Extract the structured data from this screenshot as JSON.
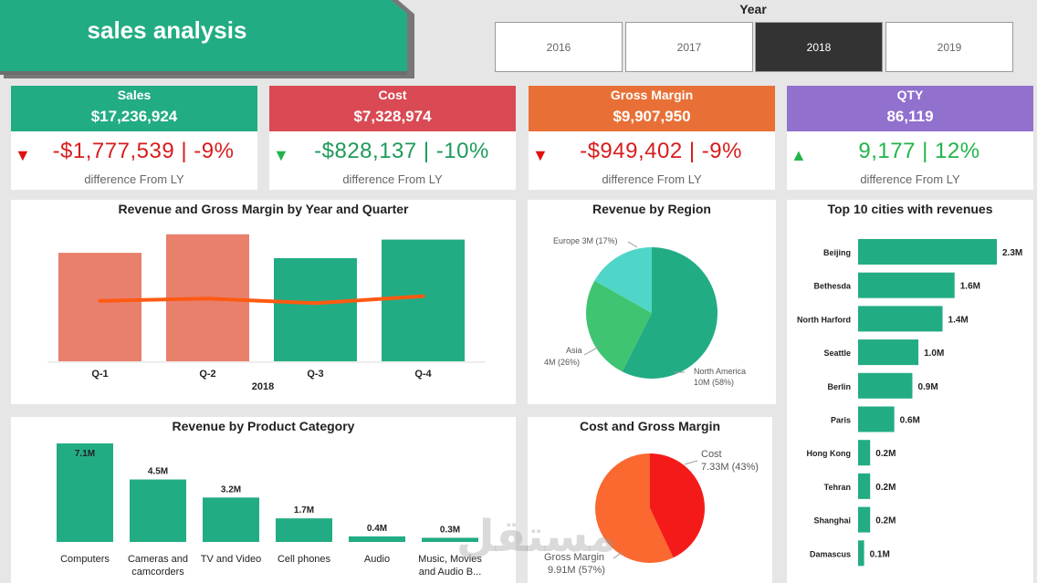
{
  "header": {
    "title": "sales analysis",
    "year_label": "Year"
  },
  "years": [
    {
      "label": "2016",
      "active": false
    },
    {
      "label": "2017",
      "active": false
    },
    {
      "label": "2018",
      "active": true
    },
    {
      "label": "2019",
      "active": false
    }
  ],
  "kpis": [
    {
      "label": "Sales",
      "value": "$17,236,924",
      "diff": "-$1,777,539 | -9%",
      "trend": "down",
      "sub": "difference From LY",
      "color": "#22ac84"
    },
    {
      "label": "Cost",
      "value": "$7,328,974",
      "diff": "-$828,137 | -10%",
      "trend": "down-green",
      "sub": "difference From LY",
      "color": "#d94a54"
    },
    {
      "label": "Gross Margin",
      "value": "$9,907,950",
      "diff": "-$949,402 | -9%",
      "trend": "down",
      "sub": "difference From LY",
      "color": "#e87036"
    },
    {
      "label": "QTY",
      "value": "86,119",
      "diff": "9,177 | 12%",
      "trend": "up",
      "sub": "difference From LY",
      "color": "#9170ce"
    }
  ],
  "chart_data": [
    {
      "type": "bar",
      "title": "Revenue and Gross Margin by Year and Quarter",
      "categories": [
        "Q-1",
        "Q-2",
        "Q-3",
        "Q-4"
      ],
      "group_label": "2018",
      "series": [
        {
          "name": "Revenue",
          "values": [
            4.1,
            4.8,
            3.9,
            4.6
          ],
          "colors": [
            "#e8806c",
            "#e8806c",
            "#22ac84",
            "#22ac84"
          ]
        },
        {
          "name": "Gross Margin",
          "type": "line",
          "values": [
            2.4,
            2.5,
            2.3,
            2.6
          ],
          "color": "#ff5a12"
        }
      ],
      "ylim": [
        0,
        5
      ]
    },
    {
      "type": "pie",
      "title": "Revenue by Region",
      "labels": [
        "North America",
        "Asia",
        "Europe"
      ],
      "values": [
        58,
        26,
        17
      ],
      "display": [
        [
          "North America",
          "10M (58%)"
        ],
        [
          "Asia",
          "4M (26%)"
        ],
        [
          "Europe 3M (17%)"
        ]
      ],
      "colors": [
        "#22ac84",
        "#3fc472",
        "#4fd6c8"
      ]
    },
    {
      "type": "bar",
      "orientation": "horizontal",
      "title": "Top 10 cities with revenues",
      "categories": [
        "Beijing",
        "Bethesda",
        "North Harford",
        "Seattle",
        "Berlin",
        "Paris",
        "Hong Kong",
        "Tehran",
        "Shanghai",
        "Damascus"
      ],
      "values": [
        2.3,
        1.6,
        1.4,
        1.0,
        0.9,
        0.6,
        0.2,
        0.2,
        0.2,
        0.1
      ],
      "labels": [
        "2.3M",
        "1.6M",
        "1.4M",
        "1.0M",
        "0.9M",
        "0.6M",
        "0.2M",
        "0.2M",
        "0.2M",
        "0.1M"
      ],
      "color": "#22ac84"
    },
    {
      "type": "bar",
      "title": "Revenue by Product Category",
      "categories": [
        [
          "Computers"
        ],
        [
          "Cameras and",
          "camcorders"
        ],
        [
          "TV and Video"
        ],
        [
          "Cell phones"
        ],
        [
          "Audio"
        ],
        [
          "Music, Movies",
          "and Audio B..."
        ]
      ],
      "values": [
        7.1,
        4.5,
        3.2,
        1.7,
        0.4,
        0.3
      ],
      "labels": [
        "7.1M",
        "4.5M",
        "3.2M",
        "1.7M",
        "0.4M",
        "0.3M"
      ],
      "color": "#22ac84"
    },
    {
      "type": "pie",
      "title": "Cost and Gross Margin",
      "labels": [
        "Cost",
        "Gross Margin"
      ],
      "values": [
        43,
        57
      ],
      "display": [
        [
          "Cost",
          "7.33M (43%)"
        ],
        [
          "Gross Margin",
          "9.91M (57%)"
        ]
      ],
      "colors": [
        "#f51a1a",
        "#fb6830"
      ]
    }
  ],
  "watermark": "مستقل"
}
